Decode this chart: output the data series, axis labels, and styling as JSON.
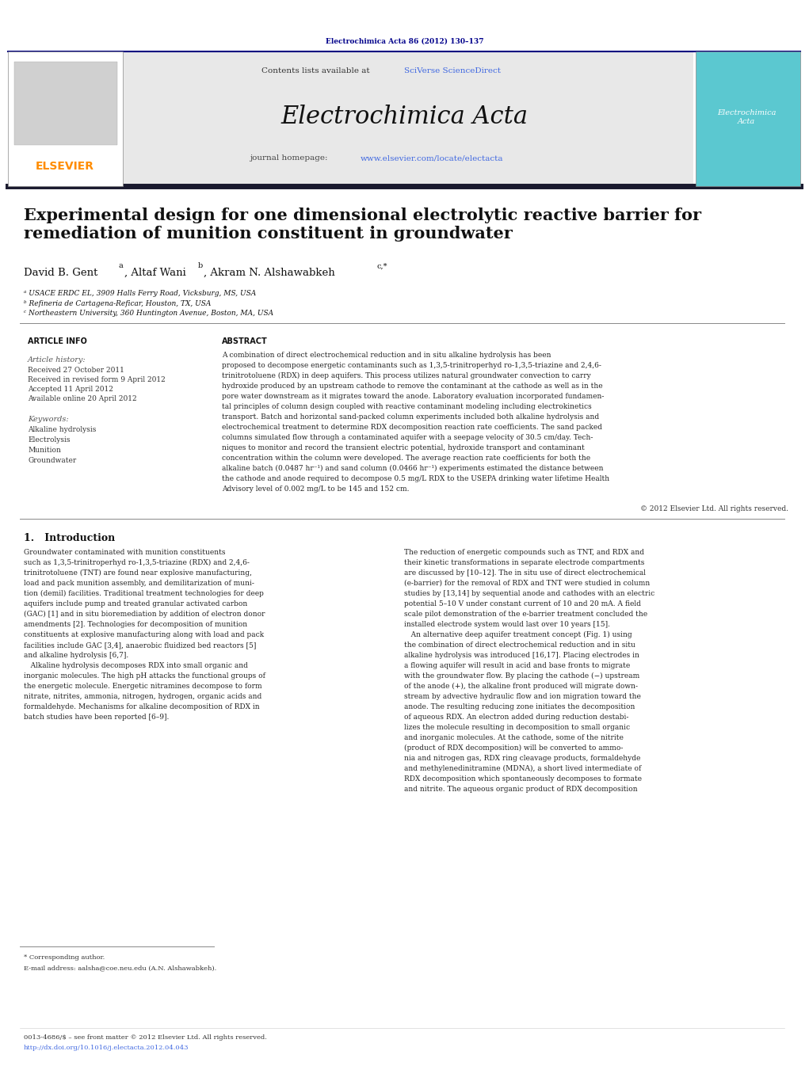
{
  "background_color": "#ffffff",
  "page_width": 10.21,
  "page_height": 13.51,
  "header_journal_ref": "Electrochimica Acta 86 (2012) 130–137",
  "header_journal_ref_color": "#00008B",
  "journal_name": "Electrochimica Acta",
  "contents_text": "Contents lists available at ",
  "sciverse_text": "SciVerse ScienceDirect",
  "homepage_text": "journal homepage: ",
  "homepage_url": "www.elsevier.com/locate/electacta",
  "elsevier_color": "#FF8C00",
  "sciverse_color": "#4169E1",
  "url_color": "#4169E1",
  "header_bg": "#E8E8E8",
  "dark_bar_color": "#1a1a2e",
  "paper_title": "Experimental design for one dimensional electrolytic reactive barrier for\nremediation of munition constituent in groundwater",
  "article_info_title": "ARTICLE INFO",
  "abstract_title": "ABSTRACT",
  "article_history_title": "Article history:",
  "received1": "Received 27 October 2011",
  "revised": "Received in revised form 9 April 2012",
  "accepted": "Accepted 11 April 2012",
  "available": "Available online 20 April 2012",
  "keywords_title": "Keywords:",
  "keyword1": "Alkaline hydrolysis",
  "keyword2": "Electrolysis",
  "keyword3": "Munition",
  "keyword4": "Groundwater",
  "abstract_text": "A combination of direct electrochemical reduction and in situ alkaline hydrolysis has been\nproposed to decompose energetic contaminants such as 1,3,5-trinitroperhyd ro-1,3,5-triazine and 2,4,6-\ntrinitrotoluene (RDX) in deep aquifers. This process utilizes natural groundwater convection to carry\nhydroxide produced by an upstream cathode to remove the contaminant at the cathode as well as in the\npore water downstream as it migrates toward the anode. Laboratory evaluation incorporated fundamen-\ntal principles of column design coupled with reactive contaminant modeling including electrokinetics\ntransport. Batch and horizontal sand-packed column experiments included both alkaline hydrolysis and\nelectrochemical treatment to determine RDX decomposition reaction rate coefficients. The sand packed\ncolumns simulated flow through a contaminated aquifer with a seepage velocity of 30.5 cm/day. Tech-\nniques to monitor and record the transient electric potential, hydroxide transport and contaminant\nconcentration within the column were developed. The average reaction rate coefficients for both the\nalkaline batch (0.0487 hr⁻¹) and sand column (0.0466 hr⁻¹) experiments estimated the distance between\nthe cathode and anode required to decompose 0.5 mg/L RDX to the USEPA drinking water lifetime Health\nAdvisory level of 0.002 mg/L to be 145 and 152 cm.",
  "copyright": "© 2012 Elsevier Ltd. All rights reserved.",
  "section1_title": "1.   Introduction",
  "intro_col1": "Groundwater contaminated with munition constituents\nsuch as 1,3,5-trinitroperhyd ro-1,3,5-triazine (RDX) and 2,4,6-\ntrinitrotoluene (TNT) are found near explosive manufacturing,\nload and pack munition assembly, and demilitarization of muni-\ntion (demil) facilities. Traditional treatment technologies for deep\naquifers include pump and treated granular activated carbon\n(GAC) [1] and in situ bioremediation by addition of electron donor\namendments [2]. Technologies for decomposition of munition\nconstituents at explosive manufacturing along with load and pack\nfacilities include GAC [3,4], anaerobic fluidized bed reactors [5]\nand alkaline hydrolysis [6,7].\n   Alkaline hydrolysis decomposes RDX into small organic and\ninorganic molecules. The high pH attacks the functional groups of\nthe energetic molecule. Energetic nitramines decompose to form\nnitrate, nitrites, ammonia, nitrogen, hydrogen, organic acids and\nformaldehyde. Mechanisms for alkaline decomposition of RDX in\nbatch studies have been reported [6–9].",
  "intro_col2": "The reduction of energetic compounds such as TNT, and RDX and\ntheir kinetic transformations in separate electrode compartments\nare discussed by [10–12]. The in situ use of direct electrochemical\n(e-barrier) for the removal of RDX and TNT were studied in column\nstudies by [13,14] by sequential anode and cathodes with an electric\npotential 5–10 V under constant current of 10 and 20 mA. A field\nscale pilot demonstration of the e-barrier treatment concluded the\ninstalled electrode system would last over 10 years [15].\n   An alternative deep aquifer treatment concept (Fig. 1) using\nthe combination of direct electrochemical reduction and in situ\nalkaline hydrolysis was introduced [16,17]. Placing electrodes in\na flowing aquifer will result in acid and base fronts to migrate\nwith the groundwater flow. By placing the cathode (−) upstream\nof the anode (+), the alkaline front produced will migrate down-\nstream by advective hydraulic flow and ion migration toward the\nanode. The resulting reducing zone initiates the decomposition\nof aqueous RDX. An electron added during reduction destabi-\nlizes the molecule resulting in decomposition to small organic\nand inorganic molecules. At the cathode, some of the nitrite\n(product of RDX decomposition) will be converted to ammo-\nnia and nitrogen gas, RDX ring cleavage products, formaldehyde\nand methylenedinitramine (MDNA), a short lived intermediate of\nRDX decomposition which spontaneously decomposes to formate\nand nitrite. The aqueous organic product of RDX decomposition",
  "footnote1": "* Corresponding author.",
  "footnote2": "E-mail address: aalsha@coe.neu.edu (A.N. Alshawabkeh).",
  "footer1": "0013-4686/$ – see front matter © 2012 Elsevier Ltd. All rights reserved.",
  "footer2": "http://dx.doi.org/10.1016/j.electacta.2012.04.043"
}
